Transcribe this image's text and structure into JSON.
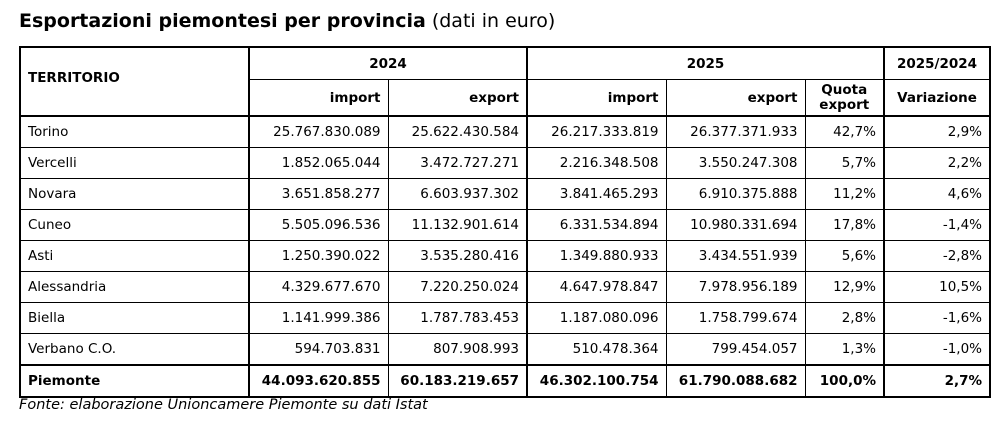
{
  "title": {
    "bold": "Esportazioni piemontesi per provincia",
    "normal": " (dati in euro)"
  },
  "headers": {
    "territorio": "TERRITORIO",
    "year_2024": "2024",
    "year_2025": "2025",
    "ratio": "2025/2024",
    "import": "import",
    "export": "export",
    "quota_line1": "Quota",
    "quota_line2": "export",
    "variazione": "Variazione"
  },
  "rows": [
    {
      "name": "Torino",
      "imp24": "25.767.830.089",
      "exp24": "25.622.430.584",
      "imp25": "26.217.333.819",
      "exp25": "26.377.371.933",
      "quota": "42,7%",
      "var": "2,9%"
    },
    {
      "name": "Vercelli",
      "imp24": "1.852.065.044",
      "exp24": "3.472.727.271",
      "imp25": "2.216.348.508",
      "exp25": "3.550.247.308",
      "quota": "5,7%",
      "var": "2,2%"
    },
    {
      "name": "Novara",
      "imp24": "3.651.858.277",
      "exp24": "6.603.937.302",
      "imp25": "3.841.465.293",
      "exp25": "6.910.375.888",
      "quota": "11,2%",
      "var": "4,6%"
    },
    {
      "name": "Cuneo",
      "imp24": "5.505.096.536",
      "exp24": "11.132.901.614",
      "imp25": "6.331.534.894",
      "exp25": "10.980.331.694",
      "quota": "17,8%",
      "var": "-1,4%"
    },
    {
      "name": "Asti",
      "imp24": "1.250.390.022",
      "exp24": "3.535.280.416",
      "imp25": "1.349.880.933",
      "exp25": "3.434.551.939",
      "quota": "5,6%",
      "var": "-2,8%"
    },
    {
      "name": "Alessandria",
      "imp24": "4.329.677.670",
      "exp24": "7.220.250.024",
      "imp25": "4.647.978.847",
      "exp25": "7.978.956.189",
      "quota": "12,9%",
      "var": "10,5%"
    },
    {
      "name": "Biella",
      "imp24": "1.141.999.386",
      "exp24": "1.787.783.453",
      "imp25": "1.187.080.096",
      "exp25": "1.758.799.674",
      "quota": "2,8%",
      "var": "-1,6%"
    },
    {
      "name": "Verbano C.O.",
      "imp24": "594.703.831",
      "exp24": "807.908.993",
      "imp25": "510.478.364",
      "exp25": "799.454.057",
      "quota": "1,3%",
      "var": "-1,0%"
    }
  ],
  "total": {
    "name": "Piemonte",
    "imp24": "44.093.620.855",
    "exp24": "60.183.219.657",
    "imp25": "46.302.100.754",
    "exp25": "61.790.088.682",
    "quota": "100,0%",
    "var": "2,7%"
  },
  "source": "Fonte: elaborazione Unioncamere Piemonte su dati Istat"
}
